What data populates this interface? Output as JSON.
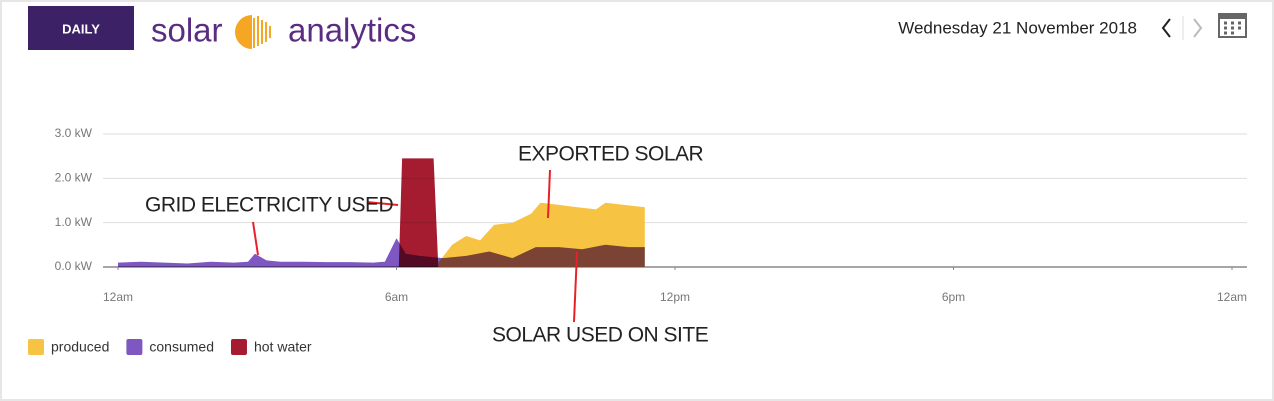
{
  "header": {
    "button": "DAILY",
    "logo_left": "solar",
    "logo_right": "analytics",
    "date": "Wednesday 21 November 2018"
  },
  "chart_data": {
    "type": "area",
    "xlim": [
      0,
      24
    ],
    "xticks": [
      {
        "value": 0,
        "label": "12am"
      },
      {
        "value": 6,
        "label": "6am"
      },
      {
        "value": 12,
        "label": "12pm"
      },
      {
        "value": 18,
        "label": "6pm"
      },
      {
        "value": 24,
        "label": "12am"
      }
    ],
    "ylim": [
      0,
      3
    ],
    "yticks": [
      {
        "value": 0,
        "label": "0.0 kW"
      },
      {
        "value": 1,
        "label": "1.0 kW"
      },
      {
        "value": 2,
        "label": "2.0 kW"
      },
      {
        "value": 3,
        "label": "3.0 kW"
      }
    ],
    "grid": true,
    "series": [
      {
        "name": "produced",
        "color": "#f6c342",
        "x": [
          6.9,
          7.2,
          7.5,
          7.8,
          8.1,
          8.5,
          8.9,
          9.1,
          9.5,
          9.9,
          10.3,
          10.5,
          10.9,
          11.35
        ],
        "values": [
          0.1,
          0.5,
          0.7,
          0.6,
          0.95,
          1.0,
          1.2,
          1.45,
          1.4,
          1.35,
          1.3,
          1.45,
          1.4,
          1.35
        ]
      },
      {
        "name": "consumed",
        "color": "#7e57c2",
        "x": [
          0,
          0.5,
          1,
          1.5,
          2,
          2.5,
          2.8,
          2.95,
          3.2,
          3.5,
          4,
          4.5,
          5,
          5.5,
          5.75,
          6,
          6.2,
          6.5,
          7,
          7.5,
          8,
          8.5,
          9,
          9.5,
          10,
          10.5,
          11,
          11.35
        ],
        "values": [
          0.1,
          0.12,
          0.1,
          0.08,
          0.12,
          0.1,
          0.12,
          0.3,
          0.15,
          0.12,
          0.12,
          0.11,
          0.11,
          0.1,
          0.12,
          0.65,
          0.3,
          0.25,
          0.2,
          0.25,
          0.35,
          0.2,
          0.45,
          0.45,
          0.4,
          0.5,
          0.45,
          0.45
        ]
      },
      {
        "name": "hot water",
        "color": "#a51c30",
        "x": [
          6.05,
          6.12,
          6.5,
          6.8,
          6.9
        ],
        "values": [
          0,
          2.45,
          2.45,
          2.45,
          0
        ]
      }
    ],
    "annotations": [
      "GRID ELECTRICITY USED",
      "EXPORTED SOLAR",
      "SOLAR USED ON SITE"
    ]
  }
}
